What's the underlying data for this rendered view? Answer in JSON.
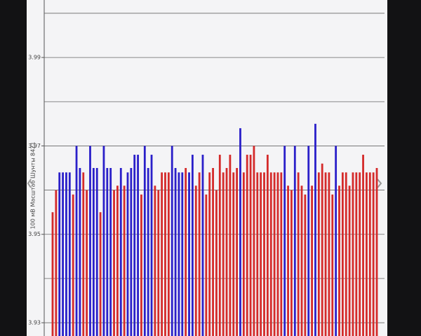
{
  "chart_data": {
    "type": "bar",
    "y_axis_label": "100 мВ Масштаб   Шунты 8421",
    "ylim": [
      3.927,
      4.003
    ],
    "yticks": [
      3.93,
      3.95,
      3.97,
      3.99
    ],
    "minor_yticks": [
      3.94,
      3.96,
      3.98,
      4.0
    ],
    "grid": true,
    "values": [
      3.955,
      3.96,
      3.964,
      3.964,
      3.964,
      3.964,
      3.959,
      3.97,
      3.965,
      3.964,
      3.96,
      3.97,
      3.965,
      3.965,
      3.955,
      3.97,
      3.965,
      3.965,
      3.96,
      3.961,
      3.965,
      3.961,
      3.964,
      3.965,
      3.968,
      3.968,
      3.959,
      3.97,
      3.965,
      3.968,
      3.961,
      3.96,
      3.964,
      3.964,
      3.964,
      3.97,
      3.965,
      3.964,
      3.964,
      3.965,
      3.964,
      3.968,
      3.961,
      3.964,
      3.968,
      3.959,
      3.964,
      3.965,
      3.96,
      3.968,
      3.964,
      3.965,
      3.968,
      3.964,
      3.965,
      3.974,
      3.964,
      3.968,
      3.968,
      3.97,
      3.964,
      3.964,
      3.964,
      3.968,
      3.964,
      3.964,
      3.964,
      3.964,
      3.97,
      3.961,
      3.96,
      3.97,
      3.964,
      3.961,
      3.959,
      3.97,
      3.961,
      3.975,
      3.964,
      3.966,
      3.964,
      3.964,
      3.959,
      3.97,
      3.961,
      3.964,
      3.964,
      3.961,
      3.964,
      3.964,
      3.964,
      3.968,
      3.964,
      3.964,
      3.964,
      3.965
    ],
    "bar_colors": [
      "#d42a2a",
      "#d42a2a",
      "#2a1fc9",
      "#2a1fc9",
      "#2a1fc9",
      "#2a1fc9",
      "#d42a2a",
      "#2a1fc9",
      "#2a1fc9",
      "#d42a2a",
      "#d42a2a",
      "#2a1fc9",
      "#2a1fc9",
      "#2a1fc9",
      "#d42a2a",
      "#2a1fc9",
      "#2a1fc9",
      "#2a1fc9",
      "#d42a2a",
      "#d42a2a",
      "#2a1fc9",
      "#d42a2a",
      "#2a1fc9",
      "#2a1fc9",
      "#2a1fc9",
      "#2a1fc9",
      "#d42a2a",
      "#2a1fc9",
      "#2a1fc9",
      "#2a1fc9",
      "#d42a2a",
      "#d42a2a",
      "#d42a2a",
      "#d42a2a",
      "#d42a2a",
      "#2a1fc9",
      "#2a1fc9",
      "#2a1fc9",
      "#2a1fc9",
      "#d42a2a",
      "#2a1fc9",
      "#2a1fc9",
      "#d42a2a",
      "#d42a2a",
      "#2a1fc9",
      "#d42a2a",
      "#d42a2a",
      "#d42a2a",
      "#d42a2a",
      "#d42a2a",
      "#d42a2a",
      "#d42a2a",
      "#d42a2a",
      "#d42a2a",
      "#d42a2a",
      "#2a1fc9",
      "#d42a2a",
      "#d42a2a",
      "#d42a2a",
      "#d42a2a",
      "#d42a2a",
      "#d42a2a",
      "#d42a2a",
      "#d42a2a",
      "#d42a2a",
      "#d42a2a",
      "#d42a2a",
      "#d42a2a",
      "#2a1fc9",
      "#d42a2a",
      "#d42a2a",
      "#2a1fc9",
      "#d42a2a",
      "#d42a2a",
      "#d42a2a",
      "#2a1fc9",
      "#d42a2a",
      "#2a1fc9",
      "#d42a2a",
      "#d42a2a",
      "#d42a2a",
      "#d42a2a",
      "#d42a2a",
      "#2a1fc9",
      "#d42a2a",
      "#d42a2a",
      "#d42a2a",
      "#d42a2a",
      "#d42a2a",
      "#d42a2a",
      "#d42a2a",
      "#d42a2a",
      "#d42a2a",
      "#d42a2a",
      "#d42a2a",
      "#d42a2a"
    ]
  }
}
